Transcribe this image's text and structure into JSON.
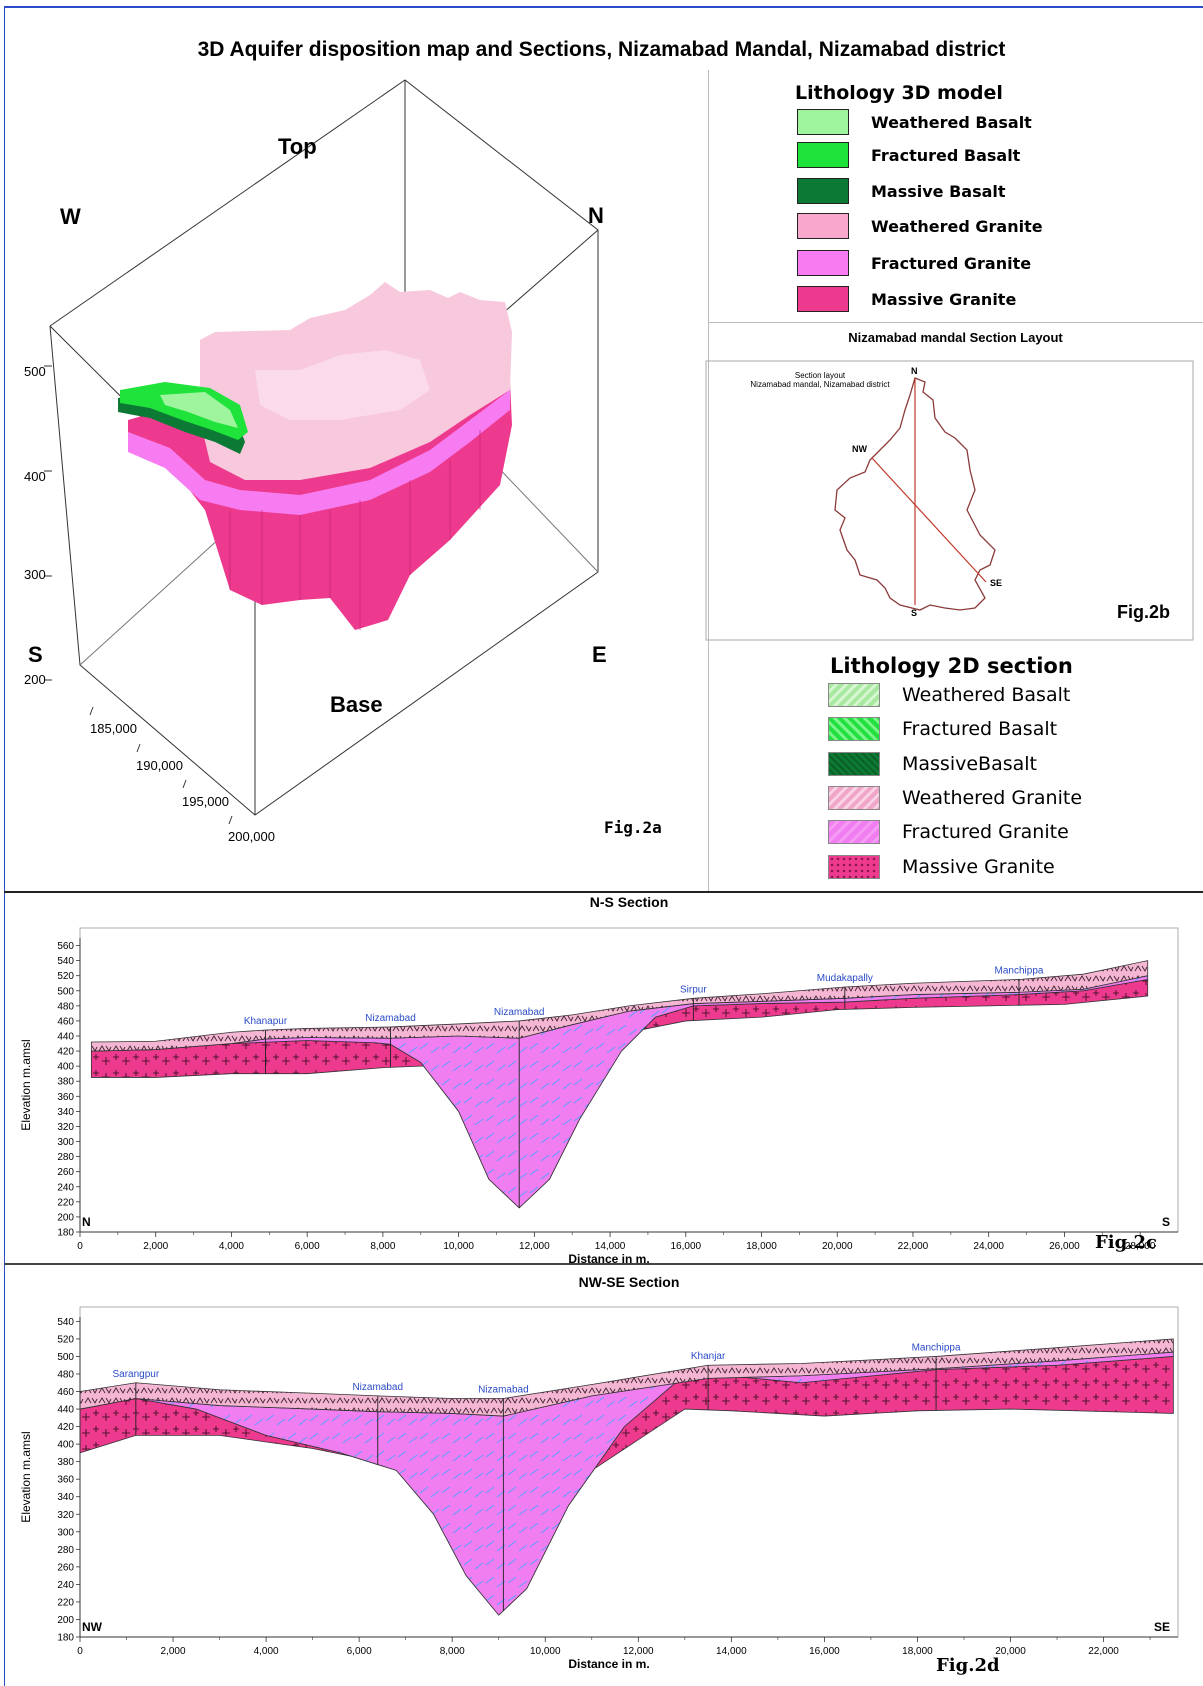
{
  "title": "3D Aquifer disposition map and Sections, Nizamabad Mandal, Nizamabad district",
  "fig2a": {
    "labels": {
      "top": "Top",
      "base": "Base",
      "w": "W",
      "n": "N",
      "s": "S",
      "e": "E"
    },
    "z_ticks": [
      "500",
      "400",
      "300",
      "200"
    ],
    "y_ticks": [
      "185,000",
      "190,000",
      "195,000",
      "200,000"
    ],
    "fig_label": "Fig.2a"
  },
  "legend3d": {
    "title": "Lithology 3D model",
    "items": [
      {
        "label": "Weathered Basalt",
        "color": "#9ef59e"
      },
      {
        "label": "Fractured Basalt",
        "color": "#1fe23a"
      },
      {
        "label": "Massive Basalt",
        "color": "#0c7a35"
      },
      {
        "label": "Weathered Granite",
        "color": "#f8a8cc"
      },
      {
        "label": "Fractured Granite",
        "color": "#f77cf2"
      },
      {
        "label": "Massive Granite",
        "color": "#ee3a8e"
      }
    ]
  },
  "layout_map": {
    "heading": "Nizamabad mandal Section Layout",
    "inner_title_1": "Section layout",
    "inner_title_2": "Nizamabad mandal, Nizamabad district",
    "points": {
      "n": "N",
      "nw": "NW",
      "se": "SE",
      "s": "S"
    },
    "fig_label": "Fig.2b"
  },
  "legend2d": {
    "title": "Lithology 2D section",
    "items": [
      {
        "label": "Weathered Basalt",
        "color": "#a8e8a0"
      },
      {
        "label": "Fractured Basalt",
        "color": "#22e040"
      },
      {
        "label": "MassiveBasalt",
        "color": "#0d7a33"
      },
      {
        "label": "Weathered Granite",
        "color": "#f0a6c8"
      },
      {
        "label": "Fractured Granite",
        "color": "#f07ef0"
      },
      {
        "label": "Massive Granite",
        "color": "#ee3a8e"
      }
    ]
  },
  "chart_data": [
    {
      "type": "area",
      "title": "N-S Section",
      "xlabel": "Distance in m.",
      "ylabel": "Elevation m.amsl",
      "xlim": [
        0,
        29000
      ],
      "ylim": [
        180,
        570
      ],
      "x_ticks": [
        "0",
        "2,000",
        "4,000",
        "6,000",
        "8,000",
        "10,000",
        "12,000",
        "14,000",
        "16,000",
        "18,000",
        "20,000",
        "22,000",
        "24,000",
        "26,000",
        "28,000"
      ],
      "y_ticks": [
        "180",
        "200",
        "220",
        "240",
        "260",
        "280",
        "300",
        "320",
        "340",
        "360",
        "380",
        "400",
        "420",
        "440",
        "460",
        "480",
        "500",
        "520",
        "540",
        "560"
      ],
      "end_labels": {
        "left": "N",
        "right": "S"
      },
      "places": [
        {
          "name": "Khanapur",
          "x": 4900
        },
        {
          "name": "Nizamabad",
          "x": 8200
        },
        {
          "name": "Nizamabad",
          "x": 11600
        },
        {
          "name": "Sirpur",
          "x": 16200
        },
        {
          "name": "Mudakapally",
          "x": 20200
        },
        {
          "name": "Manchippa",
          "x": 24800
        }
      ],
      "surface": [
        [
          300,
          432
        ],
        [
          2000,
          433
        ],
        [
          4000,
          445
        ],
        [
          4900,
          448
        ],
        [
          6000,
          450
        ],
        [
          8200,
          452
        ],
        [
          10000,
          456
        ],
        [
          11600,
          460
        ],
        [
          13000,
          468
        ],
        [
          14500,
          480
        ],
        [
          16200,
          490
        ],
        [
          18000,
          496
        ],
        [
          20200,
          505
        ],
        [
          22000,
          510
        ],
        [
          24800,
          515
        ],
        [
          26500,
          522
        ],
        [
          28200,
          540
        ]
      ],
      "weathered_base": [
        [
          300,
          420
        ],
        [
          2000,
          422
        ],
        [
          4000,
          430
        ],
        [
          4900,
          436
        ],
        [
          6000,
          438
        ],
        [
          8200,
          437
        ],
        [
          10000,
          440
        ],
        [
          11600,
          437
        ],
        [
          13000,
          455
        ],
        [
          14500,
          473
        ],
        [
          16200,
          483
        ],
        [
          18000,
          486
        ],
        [
          20200,
          490
        ],
        [
          22000,
          495
        ],
        [
          24800,
          498
        ],
        [
          26500,
          502
        ],
        [
          28200,
          520
        ]
      ],
      "fractured_base": [
        [
          300,
          420
        ],
        [
          2000,
          422
        ],
        [
          4000,
          430
        ],
        [
          6000,
          434
        ],
        [
          7800,
          431
        ],
        [
          8200,
          429
        ],
        [
          9000,
          405
        ],
        [
          10000,
          340
        ],
        [
          10800,
          250
        ],
        [
          11600,
          212
        ],
        [
          12400,
          250
        ],
        [
          13200,
          330
        ],
        [
          14300,
          420
        ],
        [
          15200,
          465
        ],
        [
          16200,
          480
        ],
        [
          18000,
          483
        ],
        [
          20200,
          485
        ],
        [
          22000,
          490
        ],
        [
          24800,
          495
        ],
        [
          26500,
          500
        ],
        [
          28200,
          515
        ]
      ],
      "bottom": [
        [
          300,
          385
        ],
        [
          2000,
          385
        ],
        [
          4000,
          390
        ],
        [
          6000,
          390
        ],
        [
          8000,
          398
        ],
        [
          9000,
          400
        ],
        [
          10000,
          400
        ],
        [
          12000,
          420
        ],
        [
          14000,
          440
        ],
        [
          16000,
          460
        ],
        [
          18000,
          465
        ],
        [
          20000,
          475
        ],
        [
          22000,
          478
        ],
        [
          24000,
          480
        ],
        [
          26000,
          482
        ],
        [
          28200,
          493
        ]
      ]
    },
    {
      "type": "area",
      "title": "NW-SE Section",
      "xlabel": "Distance in m.",
      "ylabel": "Elevation m.amsl",
      "xlim": [
        0,
        23600
      ],
      "ylim": [
        180,
        545
      ],
      "x_ticks": [
        "0",
        "2,000",
        "4,000",
        "6,000",
        "8,000",
        "10,000",
        "12,000",
        "14,000",
        "16,000",
        "18,000",
        "20,000",
        "22,000"
      ],
      "y_ticks": [
        "180",
        "200",
        "220",
        "240",
        "260",
        "280",
        "300",
        "320",
        "340",
        "360",
        "380",
        "400",
        "420",
        "440",
        "460",
        "480",
        "500",
        "520",
        "540"
      ],
      "end_labels": {
        "left": "NW",
        "right": "SE"
      },
      "places": [
        {
          "name": "Sarangpur",
          "x": 1200
        },
        {
          "name": "Nizamabad",
          "x": 6400
        },
        {
          "name": "Nizamabad",
          "x": 9100
        },
        {
          "name": "Khanjar",
          "x": 13500
        },
        {
          "name": "Manchippa",
          "x": 18400
        }
      ],
      "surface": [
        [
          0,
          460
        ],
        [
          1200,
          470
        ],
        [
          3000,
          462
        ],
        [
          5000,
          458
        ],
        [
          6400,
          455
        ],
        [
          8000,
          452
        ],
        [
          9100,
          452
        ],
        [
          11000,
          468
        ],
        [
          13500,
          490
        ],
        [
          15500,
          492
        ],
        [
          18400,
          500
        ],
        [
          21000,
          510
        ],
        [
          23500,
          520
        ]
      ],
      "weathered_base": [
        [
          0,
          440
        ],
        [
          1200,
          452
        ],
        [
          3000,
          444
        ],
        [
          5000,
          440
        ],
        [
          6400,
          437
        ],
        [
          8000,
          435
        ],
        [
          9100,
          432
        ],
        [
          11000,
          455
        ],
        [
          13500,
          475
        ],
        [
          15500,
          478
        ],
        [
          18400,
          486
        ],
        [
          21000,
          495
        ],
        [
          23500,
          505
        ]
      ],
      "fractured_base": [
        [
          0,
          440
        ],
        [
          1200,
          452
        ],
        [
          2500,
          440
        ],
        [
          4000,
          410
        ],
        [
          5600,
          390
        ],
        [
          6800,
          370
        ],
        [
          7600,
          320
        ],
        [
          8300,
          250
        ],
        [
          9000,
          205
        ],
        [
          9600,
          235
        ],
        [
          10500,
          330
        ],
        [
          11700,
          420
        ],
        [
          12800,
          470
        ],
        [
          13500,
          480
        ],
        [
          15500,
          470
        ],
        [
          18400,
          485
        ],
        [
          21000,
          490
        ],
        [
          23500,
          500
        ]
      ],
      "bottom": [
        [
          0,
          390
        ],
        [
          1200,
          410
        ],
        [
          3000,
          410
        ],
        [
          5000,
          395
        ],
        [
          6400,
          380
        ],
        [
          7500,
          355
        ],
        [
          9000,
          330
        ],
        [
          11000,
          370
        ],
        [
          13000,
          440
        ],
        [
          14000,
          438
        ],
        [
          16000,
          432
        ],
        [
          18000,
          438
        ],
        [
          20000,
          440
        ],
        [
          23500,
          435
        ]
      ]
    }
  ],
  "fig2c_label": "Fig.2c",
  "fig2d_label": "Fig.2d"
}
